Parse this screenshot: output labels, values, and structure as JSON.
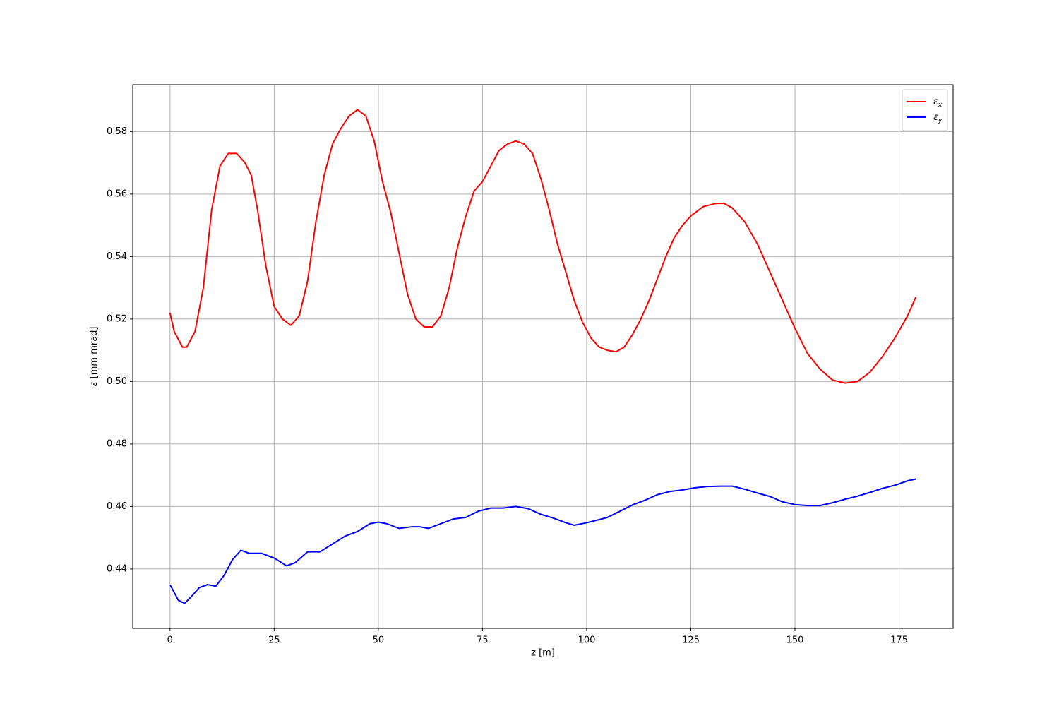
{
  "chart_data": {
    "type": "line",
    "xlabel": "z [m]",
    "ylabel": "ε [mm mrad]",
    "xlim": [
      -8.95,
      187.95
    ],
    "ylim": [
      0.421,
      0.595
    ],
    "xticks": [
      0,
      25,
      50,
      75,
      100,
      125,
      150,
      175
    ],
    "yticks": [
      0.44,
      0.46,
      0.48,
      {
        "value": 0.5,
        "label": "0.50"
      },
      0.52,
      0.54,
      0.56,
      0.58
    ],
    "grid": true,
    "legend": "upper right",
    "series": [
      {
        "name": "εx",
        "color": "#ff0000",
        "x": [
          0,
          1,
          3,
          4,
          6,
          8,
          10,
          12,
          14,
          16,
          18,
          19.5,
          21,
          23,
          25,
          27,
          29,
          31,
          33,
          35,
          37,
          39,
          41,
          43,
          45,
          47,
          49,
          51,
          53,
          55,
          57,
          59,
          61,
          63,
          65,
          67,
          69,
          71,
          73,
          75,
          77,
          79,
          81,
          83,
          85,
          87,
          89,
          91,
          93,
          95,
          97,
          99,
          101,
          103,
          105,
          107,
          109,
          111,
          113,
          115,
          117,
          119,
          121,
          123,
          125,
          128,
          131,
          133,
          135,
          138,
          141,
          144,
          147,
          150,
          153,
          156,
          159,
          162,
          165,
          168,
          171,
          174,
          177,
          179
        ],
        "values": [
          0.522,
          0.516,
          0.511,
          0.511,
          0.516,
          0.53,
          0.555,
          0.569,
          0.573,
          0.573,
          0.57,
          0.566,
          0.555,
          0.537,
          0.524,
          0.52,
          0.518,
          0.521,
          0.532,
          0.551,
          0.566,
          0.576,
          0.581,
          0.585,
          0.587,
          0.585,
          0.577,
          0.564,
          0.554,
          0.541,
          0.528,
          0.52,
          0.5175,
          0.5175,
          0.521,
          0.53,
          0.543,
          0.553,
          0.561,
          0.564,
          0.569,
          0.574,
          0.576,
          0.577,
          0.576,
          0.573,
          0.565,
          0.555,
          0.544,
          0.535,
          0.526,
          0.519,
          0.514,
          0.511,
          0.51,
          0.5095,
          0.511,
          0.515,
          0.52,
          0.526,
          0.533,
          0.54,
          0.546,
          0.55,
          0.553,
          0.556,
          0.557,
          0.557,
          0.5555,
          0.551,
          0.544,
          0.535,
          0.526,
          0.517,
          0.509,
          0.504,
          0.5005,
          0.4995,
          0.5,
          0.503,
          0.508,
          0.514,
          0.521,
          0.527
        ]
      },
      {
        "name": "εy",
        "color": "#0000ff",
        "x": [
          0,
          2,
          3.5,
          5,
          7,
          9,
          11,
          13,
          15,
          17,
          19,
          22,
          25,
          28,
          30,
          33,
          36,
          39,
          42,
          45,
          48,
          50,
          52,
          55,
          58,
          60,
          62,
          65,
          68,
          71,
          74,
          77,
          80,
          83,
          86,
          89,
          92,
          95,
          97,
          100,
          103,
          105,
          108,
          111,
          114,
          117,
          120,
          123,
          126,
          129,
          132,
          135,
          138,
          141,
          144,
          147,
          150,
          153,
          156,
          159,
          162,
          165,
          168,
          171,
          174,
          177,
          179
        ],
        "values": [
          0.435,
          0.43,
          0.429,
          0.431,
          0.434,
          0.435,
          0.4345,
          0.438,
          0.443,
          0.446,
          0.445,
          0.445,
          0.4435,
          0.441,
          0.442,
          0.4455,
          0.4455,
          0.448,
          0.4505,
          0.452,
          0.4545,
          0.455,
          0.4545,
          0.453,
          0.4535,
          0.4535,
          0.453,
          0.4545,
          0.456,
          0.4565,
          0.4585,
          0.4595,
          0.4595,
          0.46,
          0.4593,
          0.4575,
          0.4563,
          0.4548,
          0.454,
          0.4548,
          0.4558,
          0.4565,
          0.4585,
          0.4605,
          0.462,
          0.4638,
          0.4648,
          0.4653,
          0.466,
          0.4664,
          0.4665,
          0.4665,
          0.4655,
          0.4643,
          0.4632,
          0.4615,
          0.4606,
          0.4603,
          0.4603,
          0.4612,
          0.4623,
          0.4633,
          0.4645,
          0.4658,
          0.4668,
          0.4682,
          0.4688
        ]
      }
    ]
  }
}
